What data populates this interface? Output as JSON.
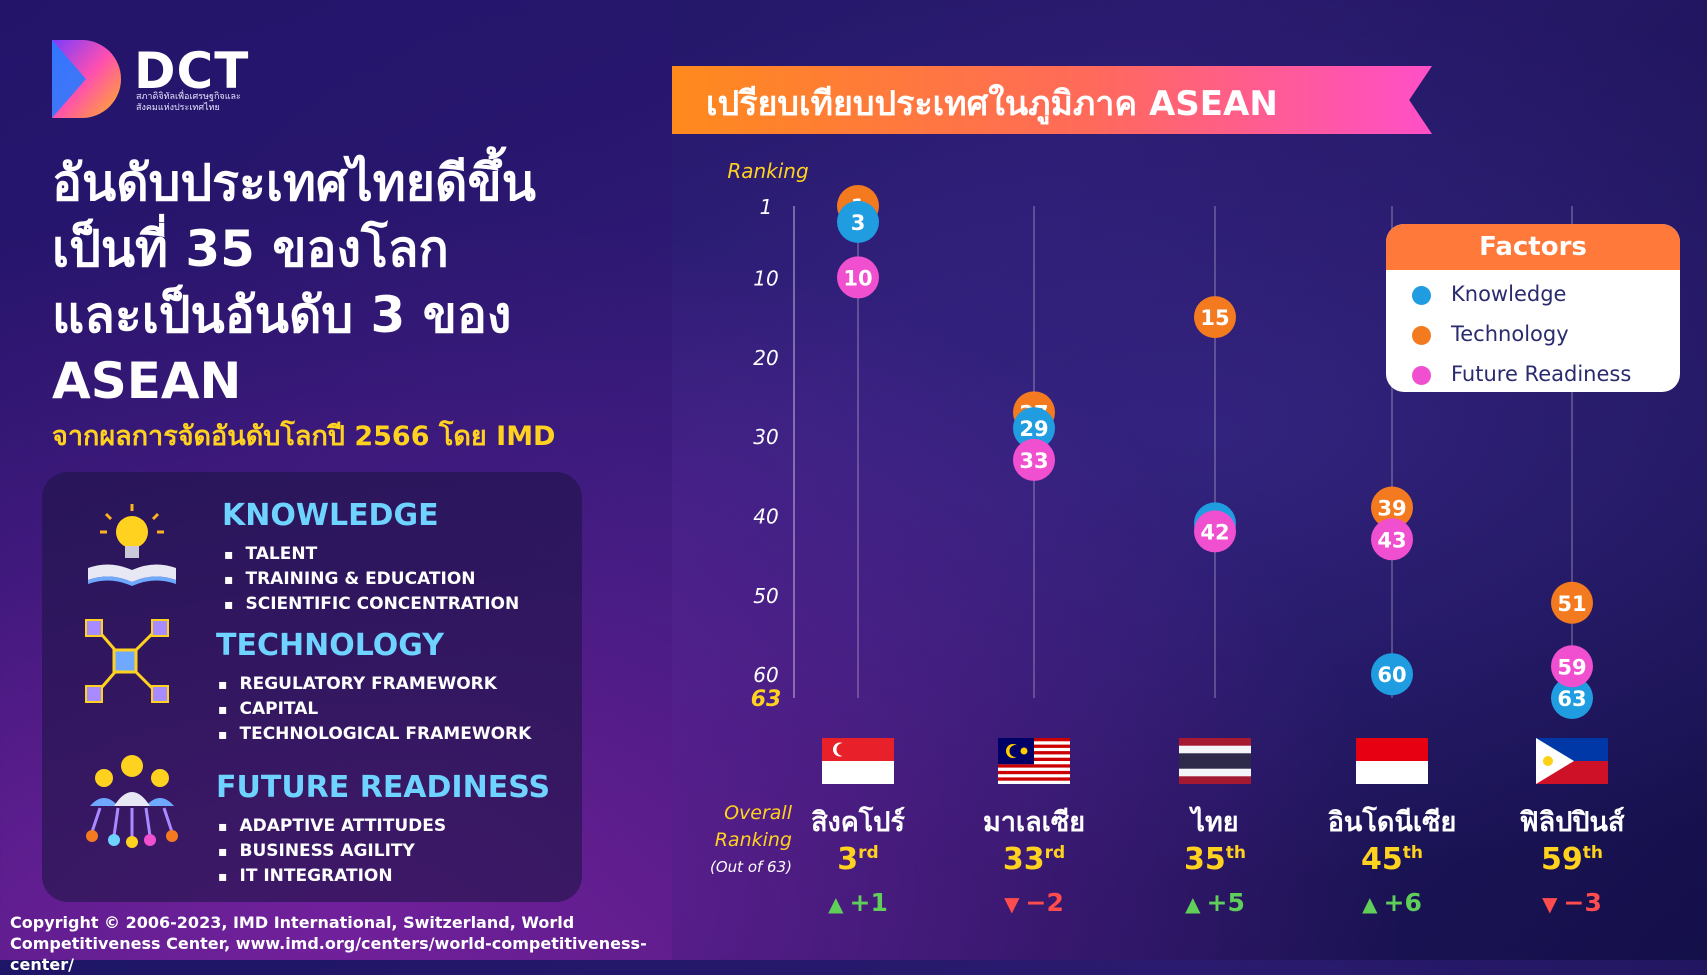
{
  "logo": {
    "name": "DCT",
    "subtitle": "สภาดิจิทัลเพื่อเศรษฐกิจและสังคมแห่งประเทศไทย"
  },
  "headline": {
    "lines": [
      "อันดับประเทศไทยดีขึ้น",
      "เป็นที่ 35 ของโลก",
      "และเป็นอันดับ 3 ของ",
      "ASEAN"
    ],
    "sub": "จากผลการจัดอันดับโลกปี 2566 โดย IMD"
  },
  "factors": [
    {
      "title": "KNOWLEDGE",
      "items": [
        "TALENT",
        "TRAINING & EDUCATION",
        "SCIENTIFIC CONCENTRATION"
      ]
    },
    {
      "title": "TECHNOLOGY",
      "items": [
        "REGULATORY FRAMEWORK",
        "CAPITAL",
        "TECHNOLOGICAL FRAMEWORK"
      ]
    },
    {
      "title": "FUTURE READINESS",
      "items": [
        "ADAPTIVE ATTITUDES",
        "BUSINESS AGILITY",
        "IT INTEGRATION"
      ]
    }
  ],
  "copyright": "Copyright © 2006-2023, IMD International, Switzerland, World Competitiveness Center, www.imd.org/centers/world-competitiveness-center/",
  "banner": "เปรียบเทียบประเทศในภูมิภาค ASEAN",
  "overall": {
    "line1": "Overall",
    "line2": "Ranking",
    "line3": "(Out of 63)"
  },
  "colors": {
    "knowledge": "#1f9de0",
    "technology": "#f37a1f",
    "future": "#f04fd0"
  },
  "chart_data": {
    "type": "scatter",
    "ylabel": "Ranking",
    "ylim": [
      1,
      63
    ],
    "y_ticks": [
      1,
      10,
      20,
      30,
      40,
      50,
      60,
      63
    ],
    "y_inverted": true,
    "categories": [
      "สิงคโปร์",
      "มาเลเซีย",
      "ไทย",
      "อินโดนีเซีย",
      "ฟิลิปปินส์"
    ],
    "series": [
      {
        "name": "Knowledge",
        "values": [
          3,
          29,
          41,
          60,
          63
        ]
      },
      {
        "name": "Technology",
        "values": [
          1,
          27,
          15,
          39,
          51
        ]
      },
      {
        "name": "Future Readiness",
        "values": [
          10,
          33,
          42,
          43,
          59
        ]
      }
    ],
    "legend_title": "Factors",
    "legend_position": "top-right"
  },
  "countries": [
    {
      "name": "สิงคโปร์",
      "rank": "3",
      "suffix": "rd",
      "dir": "up",
      "change": "+1",
      "flag": "singapore-flag"
    },
    {
      "name": "มาเลเซีย",
      "rank": "33",
      "suffix": "rd",
      "dir": "down",
      "change": "−2",
      "flag": "malaysia-flag"
    },
    {
      "name": "ไทย",
      "rank": "35",
      "suffix": "th",
      "dir": "up",
      "change": "+5",
      "flag": "thailand-flag"
    },
    {
      "name": "อินโดนีเซีย",
      "rank": "45",
      "suffix": "th",
      "dir": "up",
      "change": "+6",
      "flag": "indonesia-flag"
    },
    {
      "name": "ฟิลิปปินส์",
      "rank": "59",
      "suffix": "th",
      "dir": "down",
      "change": "−3",
      "flag": "philippines-flag"
    }
  ]
}
